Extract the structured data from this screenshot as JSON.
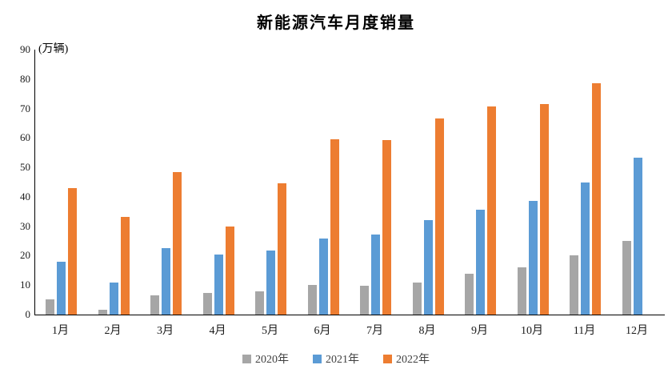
{
  "title": "新能源汽车月度销量",
  "unit_label": "(万辆)",
  "chart_data": {
    "type": "bar",
    "title": "新能源汽车月度销量",
    "ylabel": "(万辆)",
    "xlabel": "",
    "categories": [
      "1月",
      "2月",
      "3月",
      "4月",
      "5月",
      "6月",
      "7月",
      "8月",
      "9月",
      "10月",
      "11月",
      "12月"
    ],
    "series": [
      {
        "name": "2020年",
        "color": "#A6A6A6",
        "values": [
          5.2,
          1.6,
          6.5,
          7.3,
          8.0,
          10.2,
          9.7,
          10.8,
          14.0,
          16.0,
          20.0,
          24.9
        ]
      },
      {
        "name": "2021年",
        "color": "#5B9BD5",
        "values": [
          17.9,
          10.9,
          22.5,
          20.5,
          21.7,
          25.7,
          27.1,
          32.2,
          35.7,
          38.5,
          45.0,
          53.2
        ]
      },
      {
        "name": "2022年",
        "color": "#ED7D31",
        "values": [
          43.0,
          33.3,
          48.5,
          29.8,
          44.7,
          59.6,
          59.3,
          66.6,
          70.8,
          71.5,
          78.7,
          null
        ]
      }
    ],
    "ylim": [
      0,
      90
    ],
    "ytick_step": 10,
    "grid": false,
    "legend_position": "bottom"
  }
}
